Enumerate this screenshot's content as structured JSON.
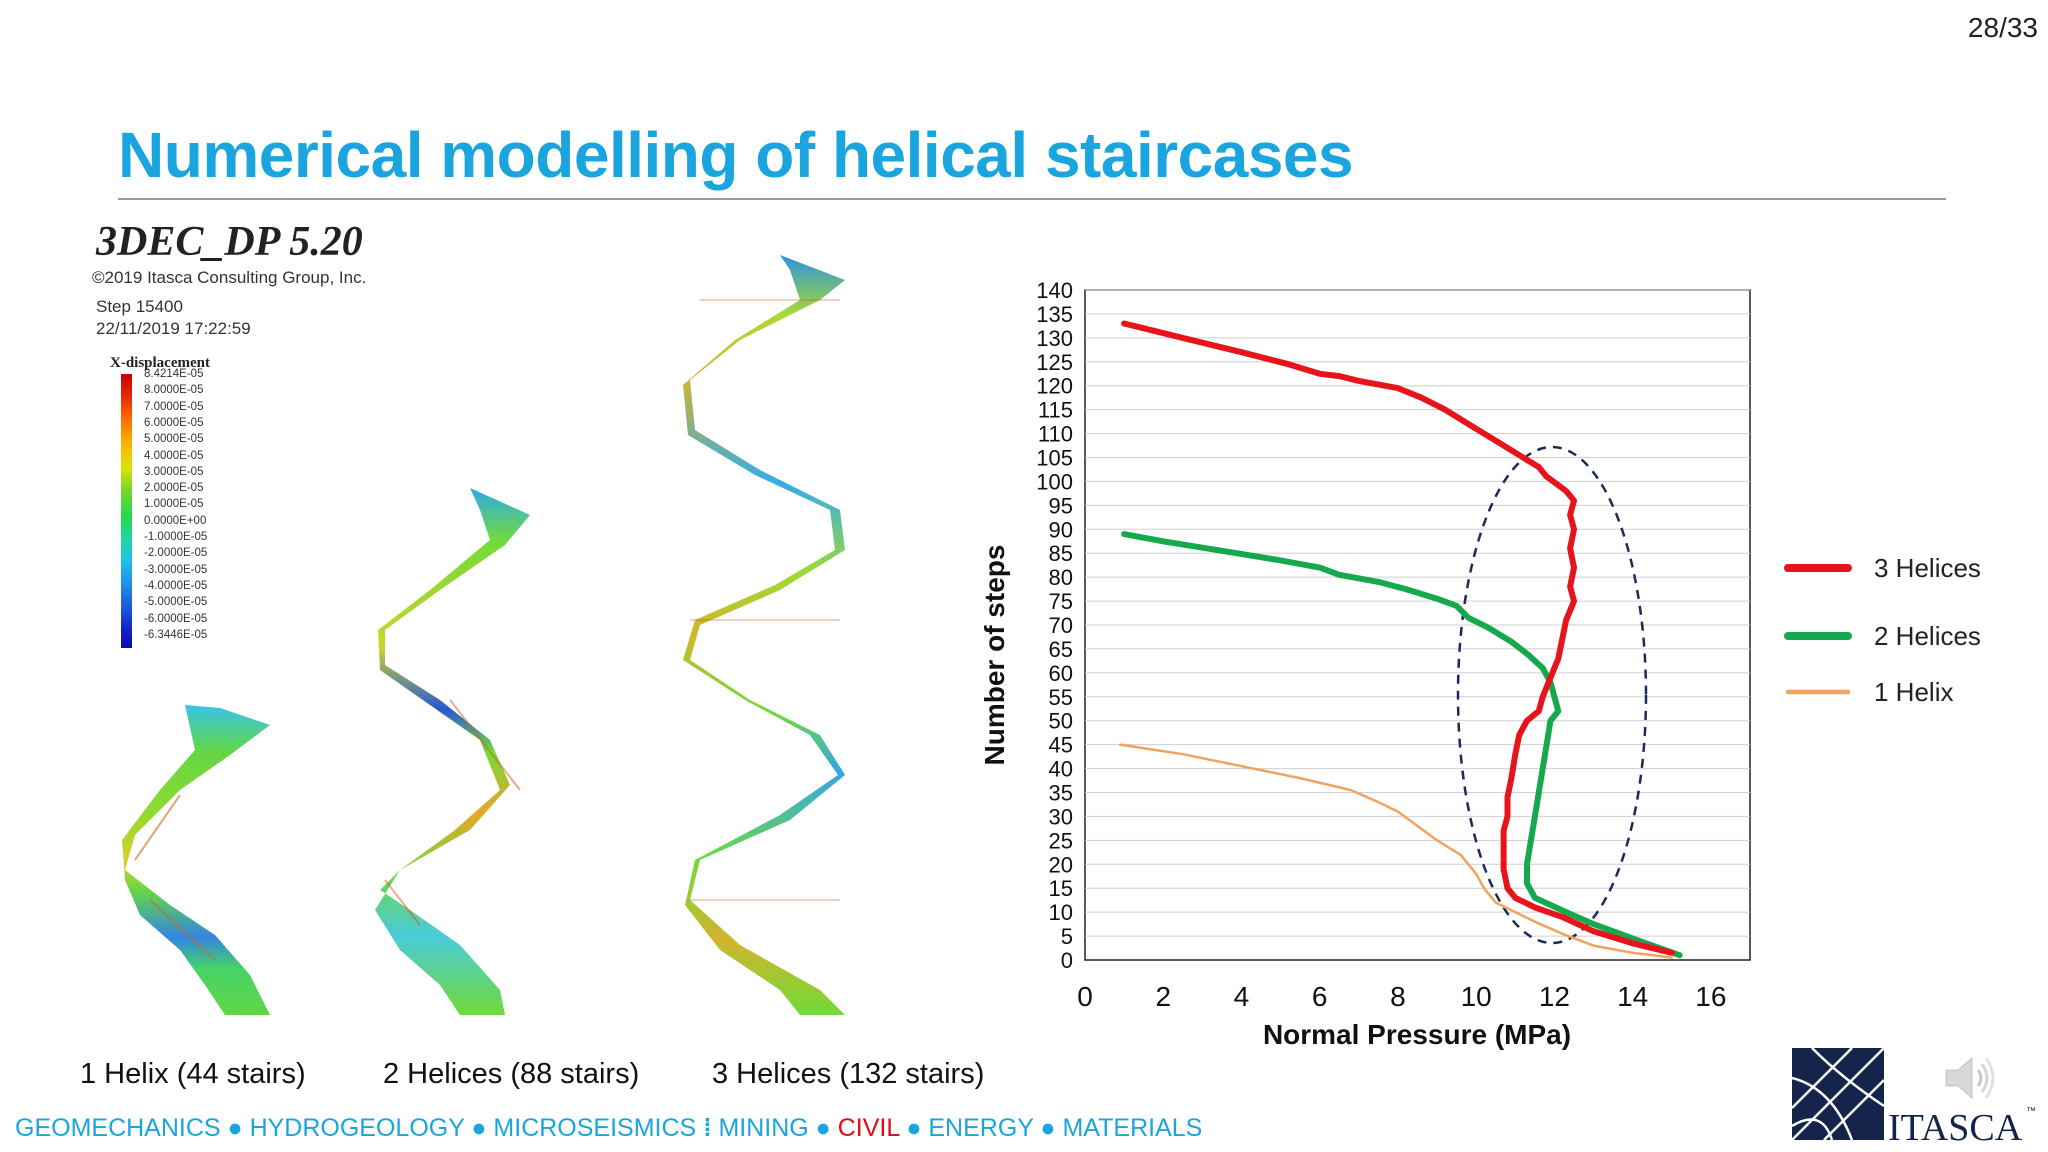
{
  "slide": {
    "page_number": "28/33",
    "title": "Numerical modelling of helical staircases",
    "captions": [
      "1 Helix (44 stairs)",
      "2 Helices (88 stairs)",
      "3 Helices (132 stairs)"
    ],
    "footer": {
      "group1": "GEOMECHANICS ● HYDROGEOLOGY ● MICROSEISMICS",
      "separator": "⁞",
      "mining": "MINING ●",
      "civil": "CIVIL",
      "group2": "● ENERGY ● MATERIALS"
    },
    "logo_text": "ITASCA",
    "logo_tm": "™"
  },
  "simulation": {
    "title": "3DEC_DP 5.20",
    "copyright": "©2019 Itasca Consulting Group, Inc.",
    "step": "Step 15400",
    "date": "22/11/2019 17:22:59",
    "legend_title": "X-displacement",
    "legend_labels": [
      "8.4214E-05",
      "8.0000E-05",
      "7.0000E-05",
      "6.0000E-05",
      "5.0000E-05",
      "4.0000E-05",
      "3.0000E-05",
      "2.0000E-05",
      "1.0000E-05",
      "0.0000E+00",
      "-1.0000E-05",
      "-2.0000E-05",
      "-3.0000E-05",
      "-4.0000E-05",
      "-5.0000E-05",
      "-6.0000E-05",
      "-6.3446E-05"
    ]
  },
  "chart_data": {
    "type": "line",
    "xlabel": "Normal Pressure (MPa)",
    "ylabel": "Number of steps",
    "xlim": [
      0,
      17
    ],
    "ylim": [
      0,
      140
    ],
    "xticks": [
      0,
      2,
      4,
      6,
      8,
      10,
      12,
      14,
      16
    ],
    "yticks": [
      0,
      5,
      10,
      15,
      20,
      25,
      30,
      35,
      40,
      45,
      50,
      55,
      60,
      65,
      70,
      75,
      80,
      85,
      90,
      95,
      100,
      105,
      110,
      115,
      120,
      125,
      130,
      135,
      140
    ],
    "grid": true,
    "legend_position": "right",
    "series": [
      {
        "name": "3 Helices",
        "color": "#e8141b",
        "width": 6,
        "points": [
          [
            1.0,
            133
          ],
          [
            2.5,
            130
          ],
          [
            4,
            127
          ],
          [
            5.2,
            124.5
          ],
          [
            6,
            122.5
          ],
          [
            6.5,
            122
          ],
          [
            7,
            121
          ],
          [
            8,
            119.5
          ],
          [
            8.6,
            117.5
          ],
          [
            9.2,
            115
          ],
          [
            10,
            111
          ],
          [
            10.6,
            108
          ],
          [
            11.2,
            105
          ],
          [
            11.6,
            103
          ],
          [
            11.8,
            101
          ],
          [
            12.3,
            98
          ],
          [
            12.5,
            96
          ],
          [
            12.4,
            93
          ],
          [
            12.5,
            90
          ],
          [
            12.4,
            86
          ],
          [
            12.5,
            82
          ],
          [
            12.4,
            78
          ],
          [
            12.5,
            75
          ],
          [
            12.3,
            71
          ],
          [
            12.2,
            67
          ],
          [
            12.1,
            63
          ],
          [
            11.9,
            59
          ],
          [
            11.7,
            55
          ],
          [
            11.6,
            52
          ],
          [
            11.3,
            50
          ],
          [
            11.1,
            47
          ],
          [
            11.0,
            43
          ],
          [
            10.9,
            38
          ],
          [
            10.8,
            34
          ],
          [
            10.8,
            30
          ],
          [
            10.7,
            27
          ],
          [
            10.7,
            23
          ],
          [
            10.7,
            19
          ],
          [
            10.8,
            15
          ],
          [
            11.0,
            13
          ],
          [
            11.5,
            11
          ],
          [
            12.2,
            9
          ],
          [
            13,
            6
          ],
          [
            14,
            3.5
          ],
          [
            15,
            1.5
          ]
        ]
      },
      {
        "name": "2 Helices",
        "color": "#16a84c",
        "width": 6,
        "points": [
          [
            1.0,
            89
          ],
          [
            2,
            87.5
          ],
          [
            3.5,
            85.5
          ],
          [
            5,
            83.5
          ],
          [
            6,
            82
          ],
          [
            6.5,
            80.5
          ],
          [
            7.5,
            79
          ],
          [
            8.2,
            77.5
          ],
          [
            9,
            75.5
          ],
          [
            9.5,
            74
          ],
          [
            9.8,
            71.5
          ],
          [
            10.3,
            69.5
          ],
          [
            10.9,
            66.5
          ],
          [
            11.3,
            64
          ],
          [
            11.7,
            61
          ],
          [
            11.9,
            58
          ],
          [
            12.0,
            55
          ],
          [
            12.1,
            52
          ],
          [
            11.9,
            50
          ],
          [
            11.8,
            45
          ],
          [
            11.7,
            40
          ],
          [
            11.6,
            35
          ],
          [
            11.5,
            30
          ],
          [
            11.4,
            25
          ],
          [
            11.3,
            20
          ],
          [
            11.3,
            16
          ],
          [
            11.5,
            13
          ],
          [
            12.3,
            10
          ],
          [
            13,
            7.5
          ],
          [
            14,
            4.5
          ],
          [
            15.2,
            1
          ]
        ]
      },
      {
        "name": "1 Helix",
        "color": "#f0a35e",
        "width": 2.5,
        "points": [
          [
            0.9,
            45
          ],
          [
            2.5,
            43
          ],
          [
            4,
            40.5
          ],
          [
            5.5,
            38
          ],
          [
            6.8,
            35.5
          ],
          [
            7.5,
            33
          ],
          [
            8,
            31
          ],
          [
            8.5,
            28
          ],
          [
            9,
            25
          ],
          [
            9.6,
            22
          ],
          [
            10,
            18
          ],
          [
            10.2,
            15
          ],
          [
            10.5,
            12
          ],
          [
            11,
            10
          ],
          [
            11.5,
            8
          ],
          [
            12.2,
            5.5
          ],
          [
            13,
            3
          ],
          [
            14,
            1.5
          ],
          [
            15,
            0.5
          ]
        ]
      }
    ],
    "annotation": "dashed ellipse highlighting region near 12 MPa"
  }
}
